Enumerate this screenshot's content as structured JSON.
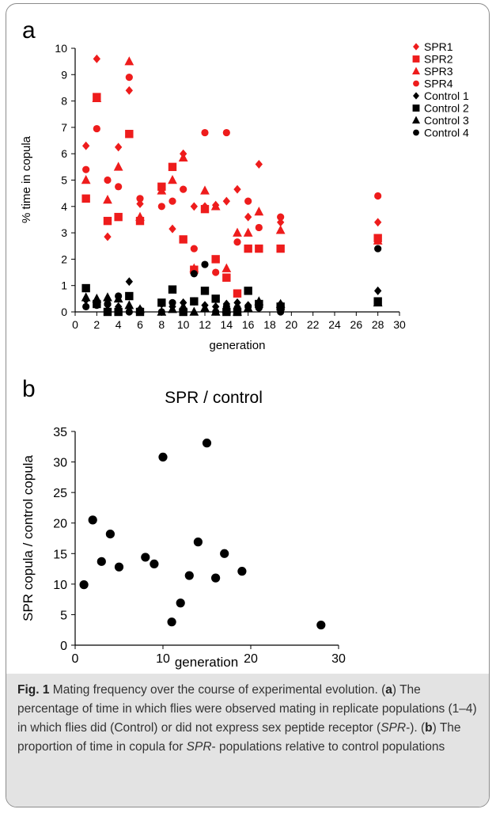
{
  "caption": {
    "fig_label": "Fig. 1",
    "parts": [
      {
        "t": "Mating frequency over the course of experimental evolution. ("
      },
      {
        "t": "a",
        "b": true
      },
      {
        "t": ") The percentage of time in which flies were observed mating in replicate populations (1–4) in which flies did (Control) or did not express sex peptide receptor ("
      },
      {
        "t": "SPR",
        "i": true
      },
      {
        "t": "-). ("
      },
      {
        "t": "b",
        "b": true
      },
      {
        "t": ") The proportion of time in copula for "
      },
      {
        "t": "SPR",
        "i": true
      },
      {
        "t": "- populations relative to control populations"
      }
    ]
  },
  "colors": {
    "spr": "#ee1c1c",
    "control": "#000000"
  },
  "chart_data": [
    {
      "panel": "a",
      "type": "scatter",
      "title": "",
      "xlabel": "generation",
      "ylabel": "% time in copula",
      "xlim": [
        0,
        30
      ],
      "ylim": [
        0,
        10
      ],
      "xticks": [
        0,
        2,
        4,
        6,
        8,
        10,
        12,
        14,
        16,
        18,
        20,
        22,
        24,
        26,
        28,
        30
      ],
      "yticks": [
        0,
        1,
        2,
        3,
        4,
        5,
        6,
        7,
        8,
        9,
        10
      ],
      "grid": false,
      "legend_position": "top-right",
      "series": [
        {
          "name": "SPR1",
          "marker": "diamond",
          "color": "#ee1c1c",
          "points": [
            [
              1,
              6.3
            ],
            [
              2,
              9.6
            ],
            [
              3,
              2.85
            ],
            [
              4,
              6.25
            ],
            [
              5,
              8.4
            ],
            [
              6,
              4.1
            ],
            [
              8,
              4.7
            ],
            [
              9,
              3.15
            ],
            [
              10,
              6.0
            ],
            [
              11,
              4.0
            ],
            [
              12,
              4.0
            ],
            [
              13,
              4.05
            ],
            [
              14,
              4.2
            ],
            [
              15,
              4.65
            ],
            [
              16,
              3.6
            ],
            [
              17,
              5.6
            ],
            [
              19,
              3.4
            ],
            [
              28,
              3.4
            ]
          ]
        },
        {
          "name": "SPR2",
          "marker": "square",
          "color": "#ee1c1c",
          "points": [
            [
              1,
              4.3
            ],
            [
              2,
              8.15
            ],
            [
              3,
              3.45
            ],
            [
              4,
              3.6
            ],
            [
              5,
              6.75
            ],
            [
              6,
              3.45
            ],
            [
              8,
              4.75
            ],
            [
              9,
              5.5
            ],
            [
              10,
              2.75
            ],
            [
              11,
              1.6
            ],
            [
              12,
              3.9
            ],
            [
              13,
              2.0
            ],
            [
              14,
              1.3
            ],
            [
              15,
              0.7
            ],
            [
              16,
              2.4
            ],
            [
              17,
              2.4
            ],
            [
              19,
              2.4
            ],
            [
              28,
              2.8
            ]
          ]
        },
        {
          "name": "SPR3",
          "marker": "triangle",
          "color": "#ee1c1c",
          "points": [
            [
              1,
              5.0
            ],
            [
              2,
              8.1
            ],
            [
              3,
              4.25
            ],
            [
              4,
              5.5
            ],
            [
              5,
              9.5
            ],
            [
              6,
              3.6
            ],
            [
              8,
              4.6
            ],
            [
              9,
              5.0
            ],
            [
              10,
              5.85
            ],
            [
              11,
              1.65
            ],
            [
              12,
              4.6
            ],
            [
              13,
              4.0
            ],
            [
              14,
              1.65
            ],
            [
              15,
              3.0
            ],
            [
              16,
              3.0
            ],
            [
              17,
              3.8
            ],
            [
              19,
              3.1
            ],
            [
              28,
              2.7
            ]
          ]
        },
        {
          "name": "SPR4",
          "marker": "circle",
          "color": "#ee1c1c",
          "points": [
            [
              1,
              5.4
            ],
            [
              2,
              6.95
            ],
            [
              3,
              5.0
            ],
            [
              4,
              4.75
            ],
            [
              5,
              8.9
            ],
            [
              6,
              4.3
            ],
            [
              8,
              4.0
            ],
            [
              9,
              4.2
            ],
            [
              10,
              4.65
            ],
            [
              11,
              2.4
            ],
            [
              12,
              6.8
            ],
            [
              13,
              1.5
            ],
            [
              14,
              6.8
            ],
            [
              15,
              2.65
            ],
            [
              16,
              4.2
            ],
            [
              17,
              3.2
            ],
            [
              19,
              3.6
            ],
            [
              28,
              4.4
            ]
          ]
        },
        {
          "name": "Control 1",
          "marker": "diamond",
          "color": "#000000",
          "points": [
            [
              1,
              0.45
            ],
            [
              2,
              0.35
            ],
            [
              3,
              0.25
            ],
            [
              4,
              0.2
            ],
            [
              5,
              1.15
            ],
            [
              6,
              0.1
            ],
            [
              8,
              0.3
            ],
            [
              9,
              0.2
            ],
            [
              10,
              0.35
            ],
            [
              11,
              0.4
            ],
            [
              12,
              0.25
            ],
            [
              13,
              0.2
            ],
            [
              14,
              0.3
            ],
            [
              15,
              0.35
            ],
            [
              16,
              0.25
            ],
            [
              17,
              0.2
            ],
            [
              19,
              0.3
            ],
            [
              28,
              0.8
            ]
          ]
        },
        {
          "name": "Control 2",
          "marker": "square",
          "color": "#000000",
          "points": [
            [
              1,
              0.9
            ],
            [
              2,
              0.3
            ],
            [
              3,
              0.0
            ],
            [
              4,
              0.0
            ],
            [
              5,
              0.6
            ],
            [
              6,
              0.0
            ],
            [
              8,
              0.35
            ],
            [
              9,
              0.85
            ],
            [
              10,
              0.0
            ],
            [
              11,
              0.4
            ],
            [
              12,
              0.8
            ],
            [
              13,
              0.5
            ],
            [
              14,
              0.0
            ],
            [
              15,
              0.0
            ],
            [
              16,
              0.8
            ],
            [
              17,
              0.3
            ],
            [
              19,
              0.2
            ],
            [
              28,
              0.4
            ]
          ]
        },
        {
          "name": "Control 3",
          "marker": "triangle",
          "color": "#000000",
          "points": [
            [
              1,
              0.55
            ],
            [
              2,
              0.5
            ],
            [
              3,
              0.55
            ],
            [
              4,
              0.5
            ],
            [
              5,
              0.25
            ],
            [
              6,
              0.1
            ],
            [
              8,
              0.0
            ],
            [
              9,
              0.1
            ],
            [
              10,
              0.2
            ],
            [
              11,
              0.0
            ],
            [
              12,
              0.15
            ],
            [
              13,
              0.0
            ],
            [
              14,
              0.1
            ],
            [
              15,
              0.0
            ],
            [
              16,
              0.15
            ],
            [
              17,
              0.4
            ],
            [
              19,
              0.3
            ],
            [
              28,
              0.35
            ]
          ]
        },
        {
          "name": "Control 4",
          "marker": "circle",
          "color": "#000000",
          "points": [
            [
              1,
              0.2
            ],
            [
              2,
              0.25
            ],
            [
              3,
              0.3
            ],
            [
              4,
              0.6
            ],
            [
              5,
              0.0
            ],
            [
              6,
              0.0
            ],
            [
              8,
              0.0
            ],
            [
              9,
              0.35
            ],
            [
              10,
              0.0
            ],
            [
              11,
              1.45
            ],
            [
              12,
              1.8
            ],
            [
              13,
              0.0
            ],
            [
              14,
              0.2
            ],
            [
              15,
              0.15
            ],
            [
              16,
              0.2
            ],
            [
              17,
              0.15
            ],
            [
              19,
              0.0
            ],
            [
              28,
              2.4
            ]
          ]
        }
      ]
    },
    {
      "panel": "b",
      "type": "scatter",
      "title": "SPR / control",
      "xlabel": "generation",
      "ylabel": "SPR copula / control copula",
      "xlim": [
        0,
        30
      ],
      "ylim": [
        0,
        35
      ],
      "xticks": [
        0,
        10,
        20,
        30
      ],
      "yticks": [
        0,
        5,
        10,
        15,
        20,
        25,
        30,
        35
      ],
      "grid": false,
      "series": [
        {
          "marker": "circle",
          "color": "#000000",
          "points": [
            [
              1,
              9.9
            ],
            [
              2,
              20.5
            ],
            [
              3,
              13.7
            ],
            [
              4,
              18.2
            ],
            [
              5,
              12.8
            ],
            [
              8,
              14.4
            ],
            [
              9,
              13.3
            ],
            [
              10,
              30.8
            ],
            [
              11,
              3.8
            ],
            [
              12,
              6.9
            ],
            [
              13,
              11.4
            ],
            [
              14,
              16.9
            ],
            [
              15,
              33.1
            ],
            [
              16,
              11.0
            ],
            [
              17,
              15.0
            ],
            [
              19,
              12.1
            ],
            [
              28,
              3.3
            ]
          ]
        }
      ]
    }
  ]
}
